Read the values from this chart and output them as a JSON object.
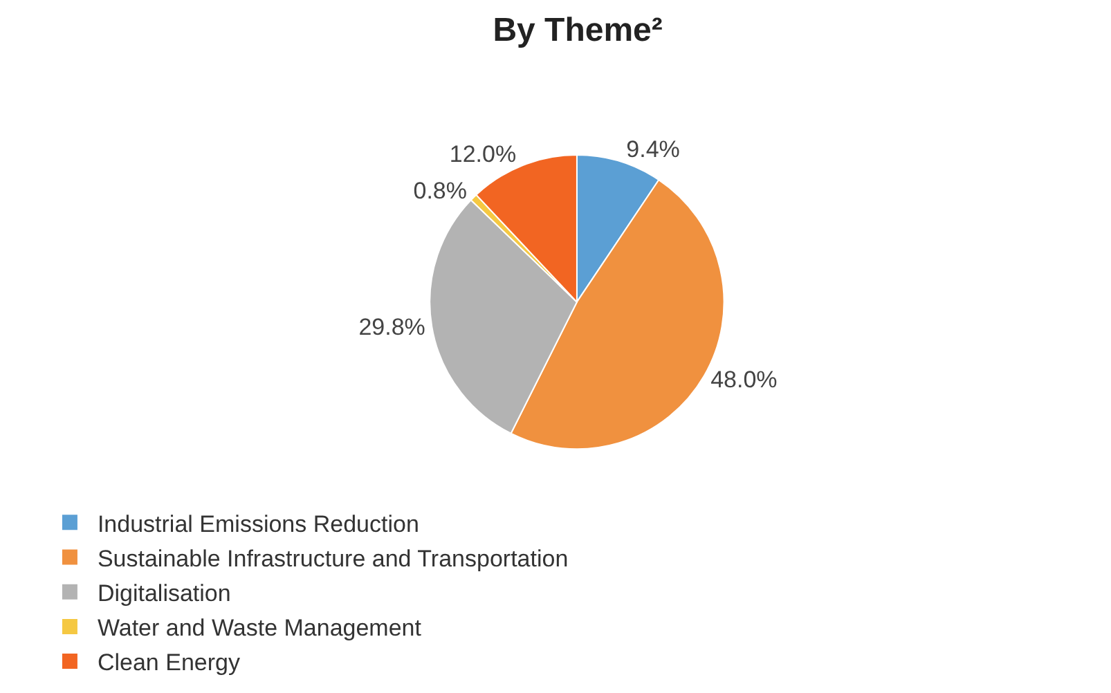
{
  "chart_data": {
    "type": "pie",
    "title": "By Theme²",
    "categories": [
      "Industrial Emissions Reduction",
      "Sustainable Infrastructure and Transportation",
      "Digitalisation",
      "Water and Waste Management",
      "Clean Energy"
    ],
    "values": [
      9.4,
      48.0,
      29.8,
      0.8,
      12.0
    ],
    "value_labels": [
      "9.4%",
      "48.0%",
      "29.8%",
      "0.8%",
      "12.0%"
    ],
    "colors": [
      "#5b9fd4",
      "#f0913f",
      "#b3b3b3",
      "#f5c842",
      "#f26522"
    ],
    "legend": "bottom"
  }
}
